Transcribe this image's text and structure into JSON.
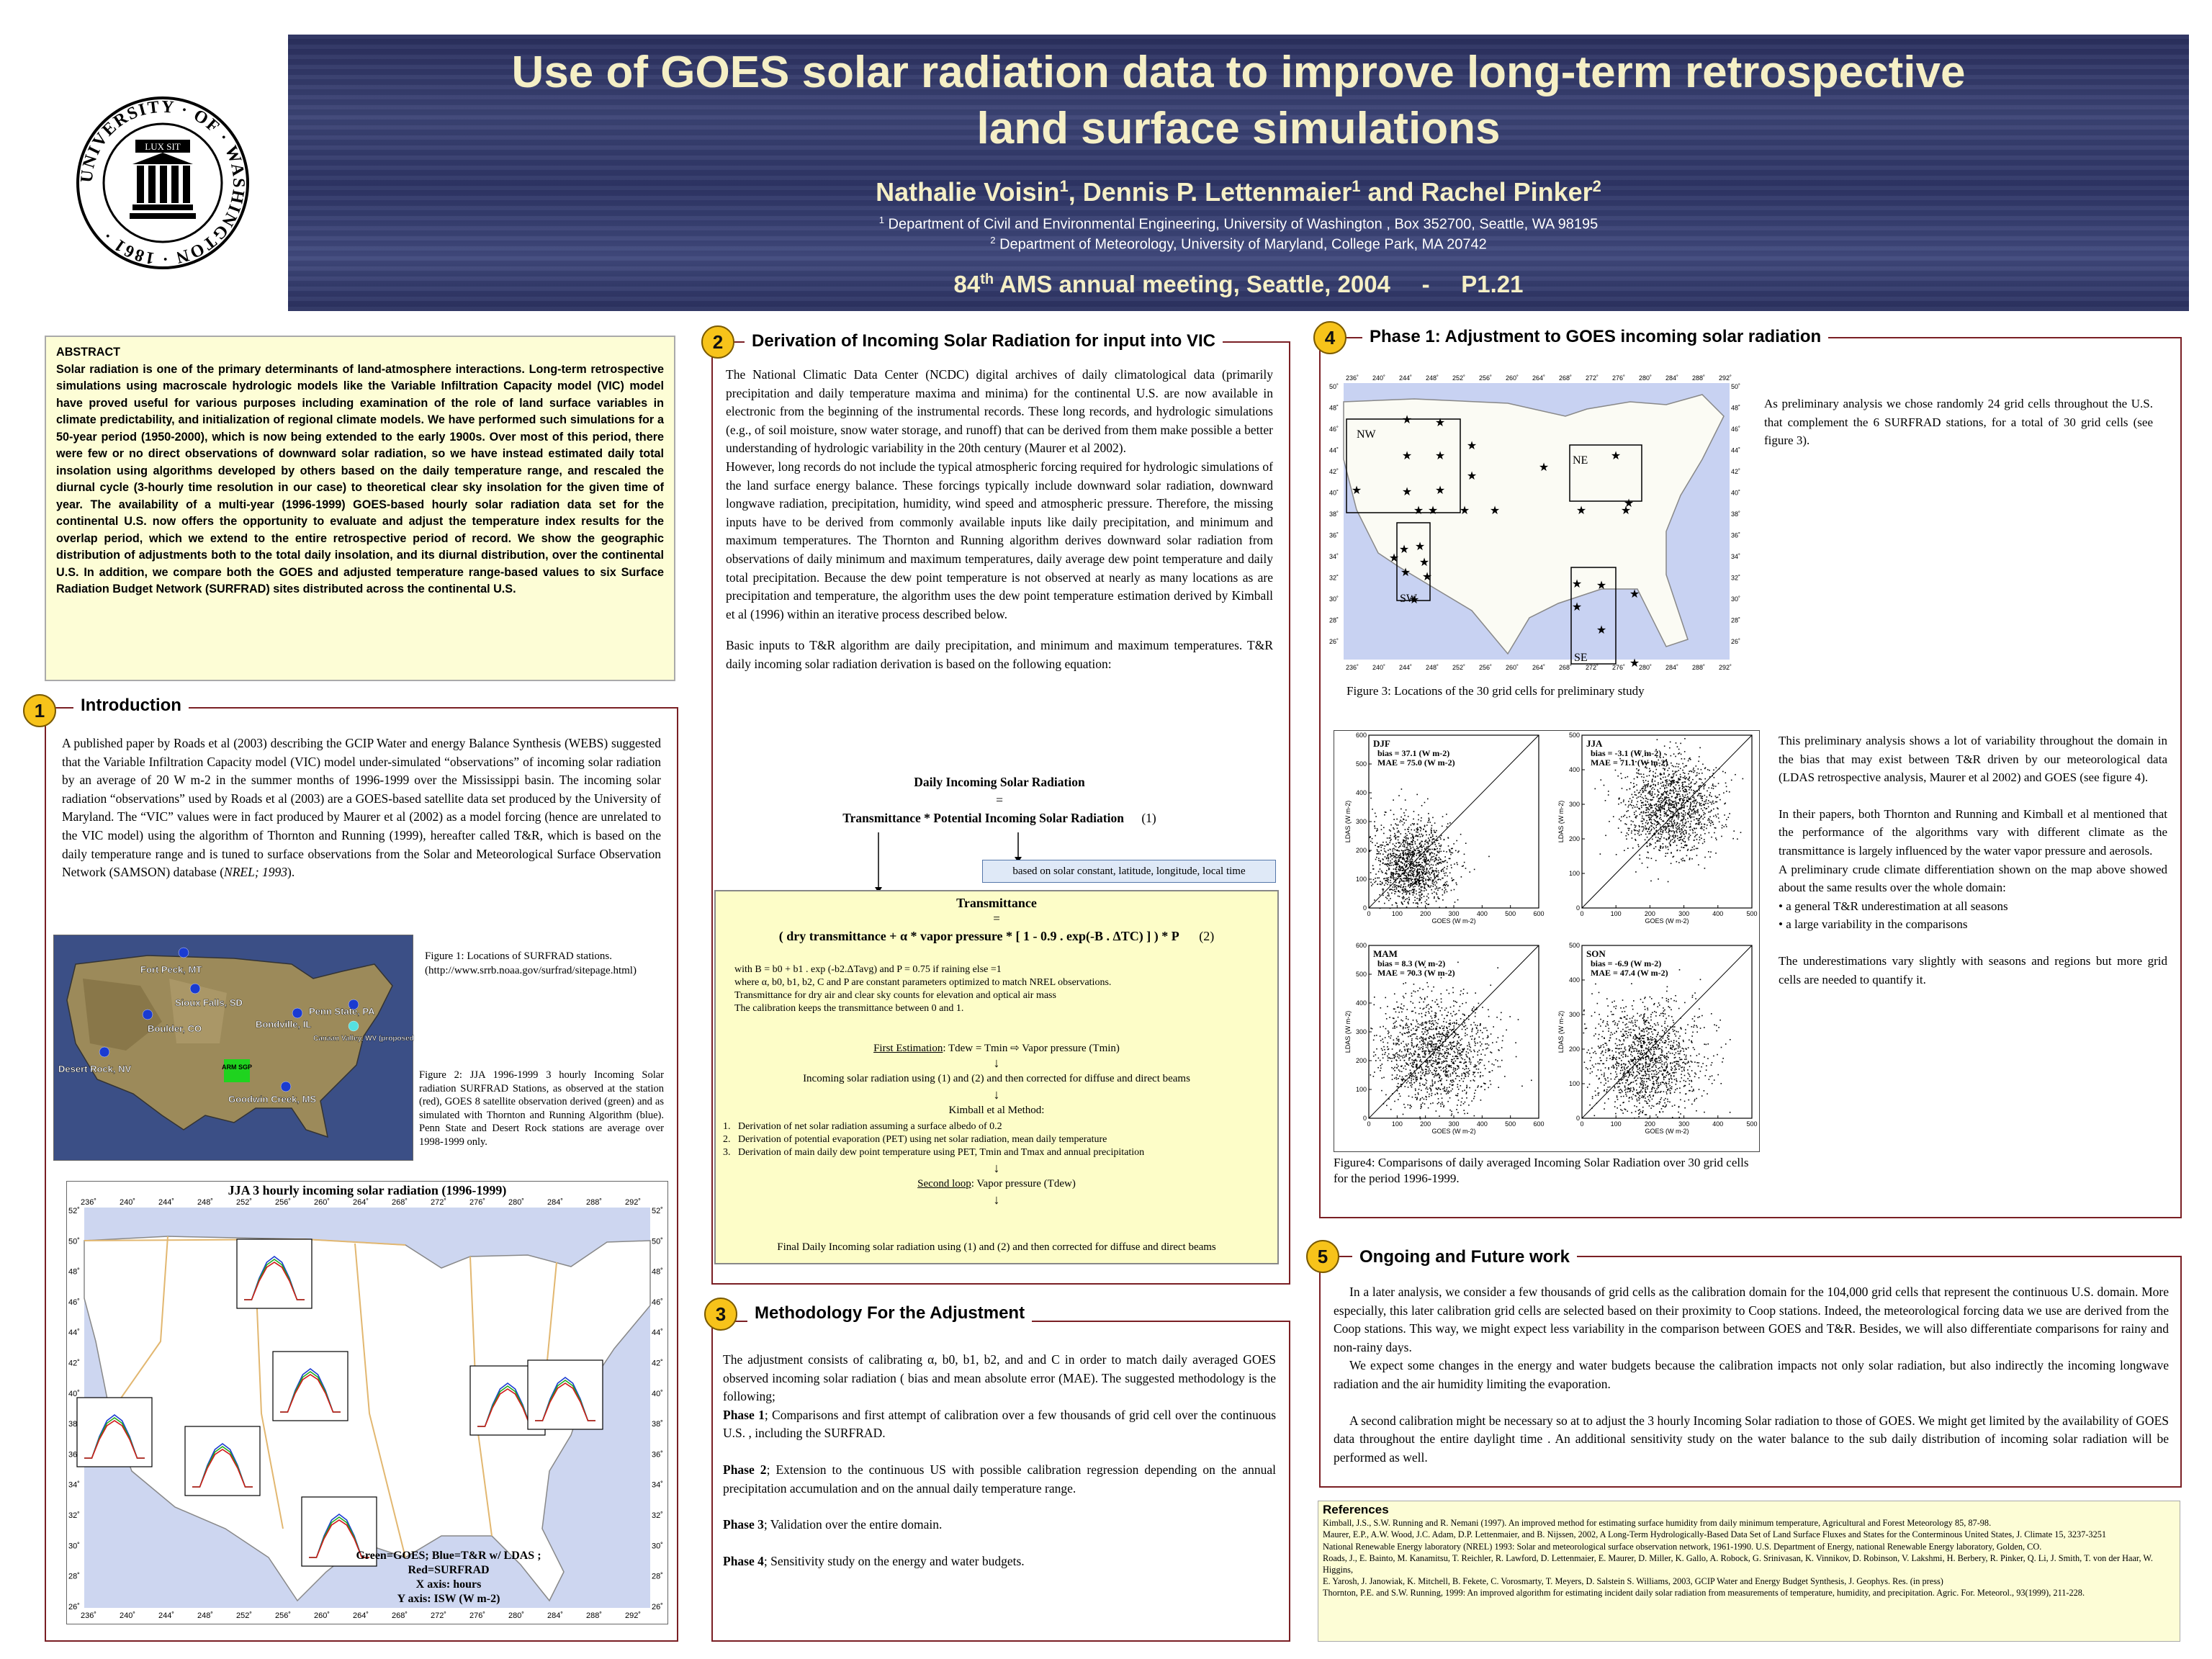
{
  "header": {
    "title_line1": "Use of GOES solar radiation data to improve long-term retrospective",
    "title_line2": "land surface simulations",
    "author1": "Nathalie Voisin",
    "author2": "Dennis P. Lettenmaier",
    "author3": "Rachel Pinker",
    "sup1": "1",
    "sup2": "2",
    "affil1": "Department of Civil and Environmental Engineering, University of Washington , Box 352700, Seattle, WA 98195",
    "affil2": "Department of Meteorology, University of Maryland, College Park, MA 20742",
    "meeting_a": "84",
    "meeting_th": "th",
    "meeting_b": " AMS annual meeting, Seattle, 2004",
    "meeting_dash": "-",
    "meeting_code": "P1.21",
    "seal_text": "UNIVERSITY · OF · WASHINGTON · 1861 ·",
    "seal_motto": "LUX SIT"
  },
  "abstract": {
    "heading": "ABSTRACT",
    "body": "Solar radiation is one of the primary determinants of land-atmosphere interactions. Long-term retrospective simulations using macroscale hydrologic models like the Variable Infiltration Capacity model (VIC) model have proved useful for various purposes including examination of the role of land surface variables in climate predictability, and initialization of regional climate models. We have performed such simulations for a 50-year period (1950-2000), which is now being extended to the early 1900s. Over most of this period, there were few or no direct observations of downward solar radiation, so we have instead estimated daily total insolation using algorithms developed by others based on the daily temperature range, and rescaled the diurnal cycle (3-hourly time resolution in our case) to theoretical clear sky insolation for the given time of year. The availability of a multi-year (1996-1999) GOES-based hourly solar radiation data set for the continental U.S. now offers the opportunity to evaluate and adjust the temperature index results for the overlap period, which we extend to the entire retrospective period of record. We show the geographic distribution of adjustments both to the total daily insolation, and its diurnal distribution, over the continental U.S. In addition, we compare both the GOES and adjusted temperature range-based values to six Surface Radiation Budget Network (SURFRAD) sites distributed across the continental U.S."
  },
  "intro": {
    "num": "1",
    "title": "Introduction",
    "body_pre": "A published paper by Roads et al (2003) describing the GCIP Water and energy Balance Synthesis (WEBS) suggested that the Variable Infiltration Capacity model (VIC) model under-simulated “observations” of incoming solar radiation by an average of 20 W m-2 in the summer months of 1996-1999 over the Mississippi basin. The incoming solar radiation “observations” used by Roads et al (2003) are a GOES-based satellite data set produced by the University of Maryland. The “VIC” values were in fact produced by Maurer et al (2002) as a model forcing (hence are unrelated to the VIC model) using the algorithm of Thornton and Running (1999), hereafter called T&R, which is based on the daily temperature range and is tuned to surface observations from the Solar and Meteorological Surface Observation Network (SAMSON) database (",
    "body_ital": "NREL; 1993",
    "body_post": ").",
    "fig1_caption": "Figure 1: Locations of SURFRAD stations. (http://www.srrb.noaa.gov/surfrad/sitepage.html)",
    "fig2_caption": "Figure 2: JJA 1996-1999 3 hourly Incoming Solar radiation SURFRAD Stations, as observed at the station (red), GOES 8 satellite observation derived (green) and as simulated with Thornton and Running Algorithm (blue). Penn State and Desert Rock stations are average over 1998-1999 only.",
    "stations": [
      "Fort Peck, MT",
      "Sioux Falls, SD",
      "Boulder, CO",
      "Bondville, IL",
      "Penn State, PA",
      "Canaan Valley, WV (proposed site)",
      "Desert Rock, NV",
      "ARM SGP",
      "Goodwin Creek, MS"
    ],
    "fig2_title": "JJA 3 hourly incoming solar radiation (1996-1999)",
    "fig2_legend1": "Green=GOES; Blue=T&R w/ LDAS ; Red=SURFRAD",
    "fig2_legend2": "X axis: hours",
    "fig2_legend3": "Y axis: ISW (W m-2)",
    "lon_labels": [
      "236˚",
      "240˚",
      "244˚",
      "248˚",
      "252˚",
      "256˚",
      "260˚",
      "264˚",
      "268˚",
      "272˚",
      "276˚",
      "280˚",
      "284˚",
      "288˚",
      "292˚"
    ],
    "lat_labels": [
      "52˚",
      "50˚",
      "48˚",
      "46˚",
      "44˚",
      "42˚",
      "40˚",
      "38˚",
      "36˚",
      "34˚",
      "32˚",
      "30˚",
      "28˚",
      "26˚"
    ]
  },
  "sec2": {
    "num": "2",
    "title": "Derivation of Incoming Solar Radiation for input into VIC",
    "p1": "The National Climatic Data Center (NCDC) digital archives of daily climatological data (primarily precipitation and daily temperature maxima and minima) for the continental U.S. are now available in electronic from the beginning of the instrumental records. These long records, and hydrologic simulations (e.g., of soil moisture, snow water storage, and runoff) that can be derived from them make possible a better understanding of hydrologic variability in the 20th century (Maurer et al 2002).",
    "p2": "However, long records do not include the typical atmospheric forcing required for hydrologic simulations of the land surface energy balance. These forcings typically include downward solar radiation, downward longwave radiation, precipitation, humidity, wind speed and atmospheric pressure. Therefore, the missing inputs have to be derived from commonly available inputs like daily precipitation, and minimum and maximum temperatures. The Thornton and Running algorithm derives downward solar radiation from observations of daily minimum and maximum temperatures, daily average dew point temperature and daily total precipitation. Because the dew point temperature is not observed at nearly as many locations as are precipitation and temperature, the algorithm uses the dew point temperature estimation derived by Kimball et al (1996) within an iterative process described below.",
    "p3": "Basic inputs to T&R algorithm are daily precipitation, and minimum and maximum temperatures. T&R daily incoming solar radiation derivation is based on the following equation:",
    "eq1_line1": "Daily Incoming Solar Radiation",
    "eq1_eq": "=",
    "eq1_line2": "Transmittance * Potential Incoming Solar Radiation",
    "eq1_num": "(1)",
    "note": "based on solar constant, latitude, longitude, local time",
    "box_title": "Transmittance",
    "box_eq": "=",
    "box_formula": "( dry transmittance + α * vapor pressure * [ 1 - 0.9 . exp(-B . ΔTC) ] ) * P",
    "box_eqnum": "(2)",
    "box_l1": "with B = b0 + b1 . exp (-b2.ΔTavg)   and  P = 0.75 if raining else =1",
    "box_l2": "where α, b0, b1, b2, C and P are constant parameters optimized to match NREL observations.",
    "box_l3": "Transmittance for dry air and clear sky counts for elevation and optical air mass",
    "box_l4": "The calibration keeps the transmittance between 0 and 1.",
    "first_est_u": "First Estimation",
    "first_est": ": Tdew = Tmin ⇨ Vapor pressure (Tmin)",
    "arrow": "↓",
    "step_a": "Incoming solar radiation using (1) and (2) and then corrected for diffuse and direct beams",
    "kimball": "Kimball et al Method:",
    "k1": "Derivation of net solar radiation assuming a surface albedo of 0.2",
    "k2": "Derivation of potential evaporation (PET) using net solar radiation, mean daily temperature",
    "k3": "Derivation of main daily dew point temperature using PET, Tmin and Tmax and annual precipitation",
    "second_u": "Second loop",
    "second": ": Vapor pressure (Tdew)",
    "final": "Final Daily Incoming solar radiation using (1) and (2) and then corrected for diffuse and direct beams"
  },
  "sec3": {
    "num": "3",
    "title": "Methodology For the Adjustment",
    "p1": "The adjustment consists of calibrating α, b0, b1, b2, and and C in order to match daily averaged GOES observed incoming solar radiation ( bias and mean absolute error (MAE). The suggested methodology is the following;",
    "ph1_b": "Phase 1",
    "ph1": "; Comparisons and first attempt of calibration over a few thousands of grid cell over the continuous U.S. , including the SURFRAD.",
    "ph2_b": "Phase 2",
    "ph2": "; Extension to the continuous US with possible calibration regression depending on the annual precipitation accumulation and on the annual daily temperature range.",
    "ph3_b": "Phase 3",
    "ph3": "; Validation over the entire domain.",
    "ph4_b": "Phase 4",
    "ph4": "; Sensitivity study on the energy and water budgets."
  },
  "sec4": {
    "num": "4",
    "title": "Phase 1: Adjustment to GOES incoming solar radiation",
    "p1": "As preliminary analysis we chose randomly 24 grid cells throughout the U.S. that complement the 6 SURFRAD stations, for a total of 30 grid cells (see figure 3).",
    "regions": [
      "NW",
      "NE",
      "SW",
      "SE"
    ],
    "fig3_caption": "Figure 3: Locations of the 30 grid cells for preliminary study",
    "fig4_caption": "Figure4: Comparisons of daily averaged Incoming Solar Radiation over 30 grid cells for the period 1996-1999.",
    "p2": "This preliminary analysis shows a lot of variability throughout the domain in the bias that may exist between T&R driven by our meteorological data (LDAS retrospective analysis, Maurer et al 2002) and GOES (see figure 4).",
    "p3": "In their papers, both Thornton and Running and Kimball et al mentioned that the performance of the algorithms vary with different climate as the transmittance is largely influenced by the water vapor pressure and aerosols.",
    "p4": "A preliminary crude climate differentiation shown on the map above showed about the same results over the whole domain:",
    "b1": "• a general T&R underestimation at all seasons",
    "b2": "• a large variability in the comparisons",
    "p5": "The underestimations vary slightly with seasons and regions but more grid cells are needed to quantify it.",
    "xlabel": "GOES (W m-2)",
    "ylabel": "LDAS (W m-2)",
    "map_lon": [
      "236˚",
      "240˚",
      "244˚",
      "248˚",
      "252˚",
      "256˚",
      "260˚",
      "264˚",
      "268˚",
      "272˚",
      "276˚",
      "280˚",
      "284˚",
      "288˚",
      "292˚"
    ],
    "map_lat": [
      "50˚",
      "48˚",
      "46˚",
      "44˚",
      "42˚",
      "40˚",
      "38˚",
      "36˚",
      "34˚",
      "32˚",
      "30˚",
      "28˚",
      "26˚"
    ]
  },
  "chart_data": [
    {
      "type": "scatter",
      "title": "DJF",
      "bias": "bias = 37.1 (W m-2)",
      "mae": "MAE = 75.0 (W m-2)",
      "xlim": [
        0,
        600
      ],
      "ylim": [
        0,
        600
      ],
      "xticks": [
        0,
        100,
        200,
        300,
        400,
        500,
        600
      ],
      "yticks": [
        0,
        100,
        200,
        300,
        400,
        500,
        600
      ],
      "cx": 150,
      "cy": 150,
      "sx": 70,
      "sy": 80
    },
    {
      "type": "scatter",
      "title": "JJA",
      "bias": "bias = -3.1 (W m-2)",
      "mae": "MAE = 71.1 (W m-2)",
      "xlim": [
        0,
        500
      ],
      "ylim": [
        0,
        500
      ],
      "xticks": [
        0,
        100,
        200,
        300,
        400,
        500
      ],
      "yticks": [
        0,
        100,
        200,
        300,
        400,
        500
      ],
      "cx": 260,
      "cy": 290,
      "sx": 70,
      "sy": 70
    },
    {
      "type": "scatter",
      "title": "MAM",
      "bias": "bias = 8.3 (W m-2)",
      "mae": "MAE = 70.3 (W m-2)",
      "xlim": [
        0,
        600
      ],
      "ylim": [
        0,
        600
      ],
      "xticks": [
        0,
        100,
        200,
        300,
        400,
        500,
        600
      ],
      "yticks": [
        0,
        100,
        200,
        300,
        400,
        500,
        600
      ],
      "cx": 230,
      "cy": 230,
      "sx": 100,
      "sy": 100
    },
    {
      "type": "scatter",
      "title": "SON",
      "bias": "bias = -6.9 (W m-2)",
      "mae": "MAE = 47.4 (W m-2)",
      "xlim": [
        0,
        500
      ],
      "ylim": [
        0,
        500
      ],
      "xticks": [
        0,
        100,
        200,
        300,
        400,
        500
      ],
      "yticks": [
        0,
        100,
        200,
        300,
        400,
        500
      ],
      "cx": 190,
      "cy": 170,
      "sx": 80,
      "sy": 80
    }
  ],
  "sec5": {
    "num": "5",
    "title": "Ongoing and Future work",
    "p1": "In a later analysis, we consider a few thousands of grid cells as the calibration domain for the 104,000 grid cells that represent the continuous U.S. domain. More especially, this later calibration grid cells are selected based on their proximity to Coop stations. Indeed, the meteorological forcing data we use are derived from the Coop stations. This way, we might expect less variability in the comparison between GOES and T&R. Besides, we will also differentiate comparisons for rainy and non-rainy days.",
    "p2": "We expect some changes in the energy and water budgets because the calibration impacts not only solar radiation, but also indirectly the incoming longwave radiation and the air humidity limiting the evaporation.",
    "p3": "A second calibration might be necessary so at to adjust the 3 hourly Incoming Solar radiation to those of GOES. We might get limited by the availability of GOES data throughout the entire daylight time . An additional sensitivity study on the water balance to the sub daily distribution of incoming solar radiation will be performed as well."
  },
  "refs": {
    "heading": "References",
    "items": [
      "Kimball, J.S., S.W. Running and R. Nemani (1997). An improved method for estimating surface humidity from daily minimum temperature, Agricultural and Forest Meteorology 85, 87-98.",
      "Maurer, E.P., A.W. Wood, J.C. Adam, D.P. Lettenmaier, and B. Nijssen, 2002, A Long-Term Hydrologically-Based Data Set of Land Surface Fluxes and States for the Conterminous United States, J. Climate 15, 3237-3251",
      "National Renewable Energy laboratory (NREL) 1993: Solar and meteorological surface observation network, 1961-1990. U.S. Department of Energy, national Renewable Energy laboratory, Golden, CO.",
      "Roads, J., E. Bainto, M. Kanamitsu, T. Reichler, R. Lawford, D. Lettenmaier, E. Maurer, D. Miller, K. Gallo, A. Robock, G. Srinivasan, K. Vinnikov, D. Robinson, V. Lakshmi, H. Berbery, R. Pinker, Q. Li, J. Smith, T. von der Haar, W. Higgins,",
      "E. Yarosh, J. Janowiak, K. Mitchell, B. Fekete, C. Vorosmarty, T. Meyers, D. Salstein S. Williams, 2003, GCIP Water and Energy Budget Synthesis, J. Geophys. Res. (in press)",
      "Thornton, P.E. and S.W. Running, 1999: An improved algorithm for estimating incident daily solar radiation from measurements of temperature, humidity, and precipitation. Agric. For. Meteorol., 93(1999), 211-228."
    ]
  }
}
